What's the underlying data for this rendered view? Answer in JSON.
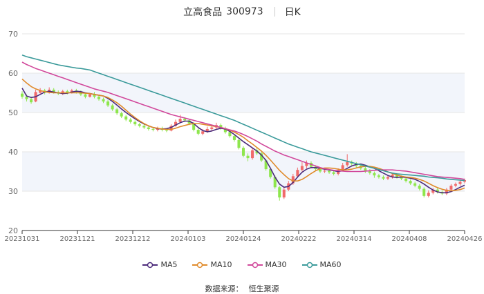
{
  "header": {
    "name": "立高食品",
    "code": "300973",
    "period": "日K"
  },
  "source": {
    "label": "数据来源：",
    "value": "恒生聚源"
  },
  "chart_data": {
    "type": "candlestick",
    "yaxis": {
      "min": 20,
      "max": 70,
      "ticks": [
        20,
        30,
        40,
        50,
        60,
        70
      ]
    },
    "xaxis": {
      "ticks": [
        "20231031",
        "20231121",
        "20231212",
        "20240103",
        "20240124",
        "20240222",
        "20240314",
        "20240408",
        "20240426"
      ]
    },
    "legend_position": "bottom",
    "colors": {
      "up": "#f06a6a",
      "down": "#8ee64d",
      "MA5": "#4b2a7a",
      "MA10": "#e08a2a",
      "MA30": "#d1489b",
      "MA60": "#3a9a9a",
      "band": "#f2f5fb",
      "grid": "#e6e6e6"
    },
    "series": [
      {
        "name": "MA5",
        "values": [
          56.2,
          54.2,
          53.8,
          54.0,
          54.6,
          55.2,
          55.4,
          55.2,
          55.0,
          54.8,
          54.9,
          55.2,
          55.4,
          55.3,
          55.0,
          54.8,
          54.6,
          54.4,
          54.2,
          53.6,
          52.8,
          51.9,
          50.9,
          50.0,
          49.2,
          48.4,
          47.7,
          47.1,
          46.6,
          46.2,
          45.9,
          45.8,
          45.9,
          46.2,
          46.8,
          47.4,
          47.8,
          47.8,
          47.2,
          46.2,
          45.4,
          45.1,
          45.3,
          45.7,
          46.0,
          45.8,
          45.2,
          44.4,
          43.5,
          42.6,
          41.8,
          41.0,
          40.2,
          39.2,
          37.8,
          35.8,
          33.6,
          31.8,
          31.0,
          31.2,
          32.2,
          33.6,
          34.8,
          35.6,
          36.0,
          36.0,
          35.8,
          35.6,
          35.4,
          35.2,
          35.0,
          35.2,
          35.8,
          36.4,
          36.8,
          36.9,
          36.6,
          36.2,
          35.8,
          35.2,
          34.6,
          34.0,
          33.6,
          33.5,
          33.6,
          33.5,
          33.3,
          33.0,
          32.5,
          31.8,
          31.0,
          30.3,
          29.8,
          29.6,
          29.6,
          29.9,
          30.4,
          31.0,
          31.5
        ]
      },
      {
        "name": "MA10",
        "values": [
          58.5,
          57.5,
          56.6,
          56.0,
          55.6,
          55.3,
          55.1,
          55.0,
          55.0,
          55.0,
          55.0,
          55.0,
          55.0,
          55.0,
          54.9,
          54.8,
          54.6,
          54.4,
          54.2,
          53.8,
          53.2,
          52.5,
          51.6,
          50.6,
          49.6,
          48.7,
          47.9,
          47.2,
          46.6,
          46.2,
          46.0,
          45.8,
          45.7,
          45.7,
          46.0,
          46.4,
          46.7,
          47.0,
          47.2,
          47.2,
          47.0,
          46.8,
          46.6,
          46.4,
          46.2,
          45.9,
          45.5,
          45.0,
          44.4,
          43.7,
          42.8,
          42.0,
          41.1,
          40.2,
          39.1,
          37.9,
          36.6,
          35.3,
          34.2,
          33.2,
          32.6,
          32.6,
          33.0,
          33.7,
          34.5,
          35.2,
          35.7,
          35.9,
          35.9,
          35.8,
          35.6,
          35.4,
          35.4,
          35.6,
          35.9,
          36.2,
          36.3,
          36.3,
          36.1,
          35.8,
          35.4,
          34.9,
          34.5,
          34.1,
          33.8,
          33.6,
          33.5,
          33.3,
          33.0,
          32.6,
          32.0,
          31.4,
          30.9,
          30.5,
          30.2,
          30.1,
          30.2,
          30.4,
          30.8
        ]
      },
      {
        "name": "MA30",
        "values": [
          62.8,
          62.2,
          61.7,
          61.2,
          60.8,
          60.4,
          60.0,
          59.6,
          59.2,
          58.8,
          58.4,
          58.0,
          57.6,
          57.2,
          56.8,
          56.4,
          56.0,
          55.7,
          55.4,
          55.1,
          54.7,
          54.3,
          53.9,
          53.5,
          53.1,
          52.7,
          52.3,
          51.9,
          51.5,
          51.1,
          50.7,
          50.3,
          49.9,
          49.5,
          49.2,
          48.9,
          48.6,
          48.3,
          48.0,
          47.7,
          47.4,
          47.1,
          46.8,
          46.5,
          46.2,
          45.9,
          45.6,
          45.3,
          44.9,
          44.4,
          43.9,
          43.3,
          42.7,
          42.0,
          41.4,
          40.8,
          40.2,
          39.7,
          39.2,
          38.8,
          38.4,
          38.0,
          37.6,
          37.2,
          36.8,
          36.4,
          36.0,
          35.7,
          35.5,
          35.3,
          35.2,
          35.1,
          35.0,
          35.0,
          35.0,
          35.0,
          35.1,
          35.2,
          35.3,
          35.4,
          35.4,
          35.4,
          35.4,
          35.3,
          35.2,
          35.1,
          34.9,
          34.7,
          34.5,
          34.3,
          34.1,
          33.9,
          33.7,
          33.6,
          33.5,
          33.4,
          33.3,
          33.2,
          33.0
        ]
      },
      {
        "name": "MA60",
        "values": [
          64.6,
          64.2,
          63.9,
          63.6,
          63.3,
          63.0,
          62.7,
          62.4,
          62.1,
          61.9,
          61.7,
          61.5,
          61.3,
          61.2,
          61.0,
          60.8,
          60.4,
          60.0,
          59.6,
          59.2,
          58.8,
          58.4,
          58.0,
          57.6,
          57.2,
          56.8,
          56.4,
          56.0,
          55.6,
          55.2,
          54.8,
          54.4,
          54.0,
          53.6,
          53.2,
          52.8,
          52.4,
          52.0,
          51.6,
          51.2,
          50.8,
          50.4,
          50.0,
          49.6,
          49.2,
          48.8,
          48.4,
          48.0,
          47.5,
          47.0,
          46.5,
          46.0,
          45.5,
          45.0,
          44.5,
          44.0,
          43.5,
          43.0,
          42.5,
          42.0,
          41.6,
          41.2,
          40.8,
          40.4,
          40.0,
          39.7,
          39.4,
          39.1,
          38.8,
          38.5,
          38.2,
          37.9,
          37.6,
          37.3,
          37.0,
          36.7,
          36.4,
          36.1,
          35.8,
          35.5,
          35.2,
          34.9,
          34.6,
          34.4,
          34.3,
          34.2,
          34.1,
          34.0,
          33.9,
          33.8,
          33.6,
          33.5,
          33.4,
          33.3,
          33.1,
          33.0,
          32.9,
          32.8,
          32.7
        ]
      }
    ],
    "candles": [
      [
        54.8,
        54.0,
        55.4,
        53.5
      ],
      [
        54.0,
        53.4,
        54.6,
        52.8
      ],
      [
        53.4,
        52.6,
        54.0,
        52.2
      ],
      [
        52.8,
        55.2,
        55.8,
        52.6
      ],
      [
        55.0,
        55.6,
        56.2,
        54.8
      ],
      [
        55.6,
        55.0,
        56.0,
        54.6
      ],
      [
        55.0,
        55.8,
        56.4,
        54.8
      ],
      [
        55.8,
        55.2,
        56.2,
        54.8
      ],
      [
        55.2,
        54.8,
        55.6,
        54.4
      ],
      [
        54.8,
        55.4,
        55.8,
        54.4
      ],
      [
        55.4,
        55.0,
        55.8,
        54.6
      ],
      [
        55.0,
        55.6,
        56.0,
        54.8
      ],
      [
        55.6,
        55.2,
        56.0,
        54.8
      ],
      [
        55.2,
        54.6,
        55.6,
        54.2
      ],
      [
        54.6,
        54.0,
        55.0,
        53.6
      ],
      [
        54.0,
        54.6,
        55.0,
        53.8
      ],
      [
        54.6,
        54.0,
        55.2,
        53.6
      ],
      [
        54.0,
        53.4,
        54.4,
        53.0
      ],
      [
        53.4,
        52.8,
        53.8,
        52.4
      ],
      [
        52.8,
        51.8,
        53.2,
        51.4
      ],
      [
        51.8,
        50.8,
        52.2,
        50.4
      ],
      [
        50.8,
        49.8,
        51.2,
        49.4
      ],
      [
        49.8,
        49.0,
        50.2,
        48.6
      ],
      [
        49.0,
        48.2,
        49.4,
        47.8
      ],
      [
        48.2,
        47.6,
        48.6,
        47.2
      ],
      [
        47.6,
        47.0,
        48.0,
        46.6
      ],
      [
        47.0,
        46.6,
        47.4,
        46.2
      ],
      [
        46.6,
        46.2,
        47.0,
        45.8
      ],
      [
        46.2,
        45.8,
        46.6,
        45.4
      ],
      [
        45.8,
        45.6,
        46.2,
        45.2
      ],
      [
        45.6,
        46.0,
        46.4,
        45.2
      ],
      [
        46.0,
        45.6,
        46.4,
        45.2
      ],
      [
        45.6,
        45.4,
        46.0,
        45.0
      ],
      [
        45.4,
        46.6,
        47.0,
        45.2
      ],
      [
        46.6,
        47.6,
        48.2,
        46.4
      ],
      [
        47.6,
        48.4,
        49.4,
        47.4
      ],
      [
        48.4,
        48.0,
        48.8,
        47.6
      ],
      [
        48.0,
        47.2,
        48.4,
        46.8
      ],
      [
        47.2,
        45.6,
        47.6,
        45.2
      ],
      [
        45.6,
        44.6,
        46.0,
        44.2
      ],
      [
        44.6,
        45.2,
        45.8,
        44.2
      ],
      [
        45.2,
        45.8,
        46.4,
        44.8
      ],
      [
        45.8,
        46.2,
        46.6,
        45.4
      ],
      [
        46.2,
        46.8,
        47.4,
        45.8
      ],
      [
        46.8,
        46.0,
        47.2,
        45.6
      ],
      [
        46.0,
        45.0,
        46.4,
        44.6
      ],
      [
        45.0,
        44.0,
        45.4,
        43.6
      ],
      [
        44.0,
        43.0,
        44.4,
        42.6
      ],
      [
        43.0,
        41.0,
        43.4,
        40.6
      ],
      [
        41.0,
        39.0,
        41.4,
        38.6
      ],
      [
        39.0,
        38.4,
        39.6,
        37.6
      ],
      [
        38.4,
        40.4,
        41.0,
        38.0
      ],
      [
        40.4,
        39.6,
        41.0,
        39.2
      ],
      [
        39.6,
        37.8,
        40.0,
        37.4
      ],
      [
        37.8,
        35.6,
        38.2,
        35.2
      ],
      [
        35.6,
        33.6,
        36.0,
        33.2
      ],
      [
        33.6,
        31.0,
        34.0,
        30.6
      ],
      [
        31.0,
        28.4,
        31.4,
        27.6
      ],
      [
        28.4,
        30.4,
        31.0,
        28.0
      ],
      [
        30.4,
        32.0,
        32.6,
        30.0
      ],
      [
        32.0,
        33.8,
        34.4,
        31.6
      ],
      [
        33.8,
        35.4,
        36.0,
        33.4
      ],
      [
        35.4,
        36.4,
        37.4,
        35.0
      ],
      [
        36.4,
        37.2,
        37.8,
        35.8
      ],
      [
        37.2,
        36.2,
        37.6,
        35.8
      ],
      [
        36.2,
        35.6,
        36.6,
        35.2
      ],
      [
        35.6,
        35.0,
        36.0,
        34.6
      ],
      [
        35.0,
        35.2,
        35.6,
        34.6
      ],
      [
        35.2,
        34.8,
        35.6,
        34.4
      ],
      [
        34.8,
        34.4,
        35.2,
        34.0
      ],
      [
        34.4,
        35.4,
        35.8,
        34.0
      ],
      [
        35.4,
        36.6,
        37.2,
        35.0
      ],
      [
        36.6,
        37.4,
        39.4,
        36.2
      ],
      [
        37.4,
        37.0,
        37.8,
        36.4
      ],
      [
        37.0,
        36.4,
        37.4,
        36.0
      ],
      [
        36.4,
        35.8,
        36.8,
        35.4
      ],
      [
        35.8,
        35.2,
        36.2,
        34.6
      ],
      [
        35.2,
        34.6,
        35.6,
        34.2
      ],
      [
        34.6,
        34.0,
        35.0,
        33.4
      ],
      [
        34.0,
        33.6,
        34.4,
        33.2
      ],
      [
        33.6,
        33.2,
        34.0,
        32.8
      ],
      [
        33.2,
        33.6,
        34.0,
        32.8
      ],
      [
        33.6,
        34.2,
        34.6,
        33.2
      ],
      [
        34.2,
        33.6,
        34.6,
        33.2
      ],
      [
        33.6,
        33.2,
        34.0,
        32.8
      ],
      [
        33.2,
        32.6,
        33.6,
        32.2
      ],
      [
        32.6,
        32.0,
        33.0,
        31.6
      ],
      [
        32.0,
        31.4,
        32.4,
        31.0
      ],
      [
        31.4,
        30.6,
        31.8,
        30.2
      ],
      [
        30.6,
        28.8,
        31.0,
        28.4
      ],
      [
        28.8,
        29.6,
        30.2,
        28.4
      ],
      [
        29.6,
        30.4,
        30.8,
        29.2
      ],
      [
        30.4,
        29.8,
        30.8,
        29.4
      ],
      [
        29.8,
        29.4,
        30.2,
        29.0
      ],
      [
        29.4,
        30.4,
        30.8,
        29.0
      ],
      [
        30.4,
        31.4,
        31.8,
        30.0
      ],
      [
        31.4,
        31.8,
        32.2,
        31.0
      ],
      [
        31.8,
        32.4,
        32.8,
        31.4
      ],
      [
        32.4,
        32.8,
        33.2,
        32.0
      ]
    ]
  }
}
